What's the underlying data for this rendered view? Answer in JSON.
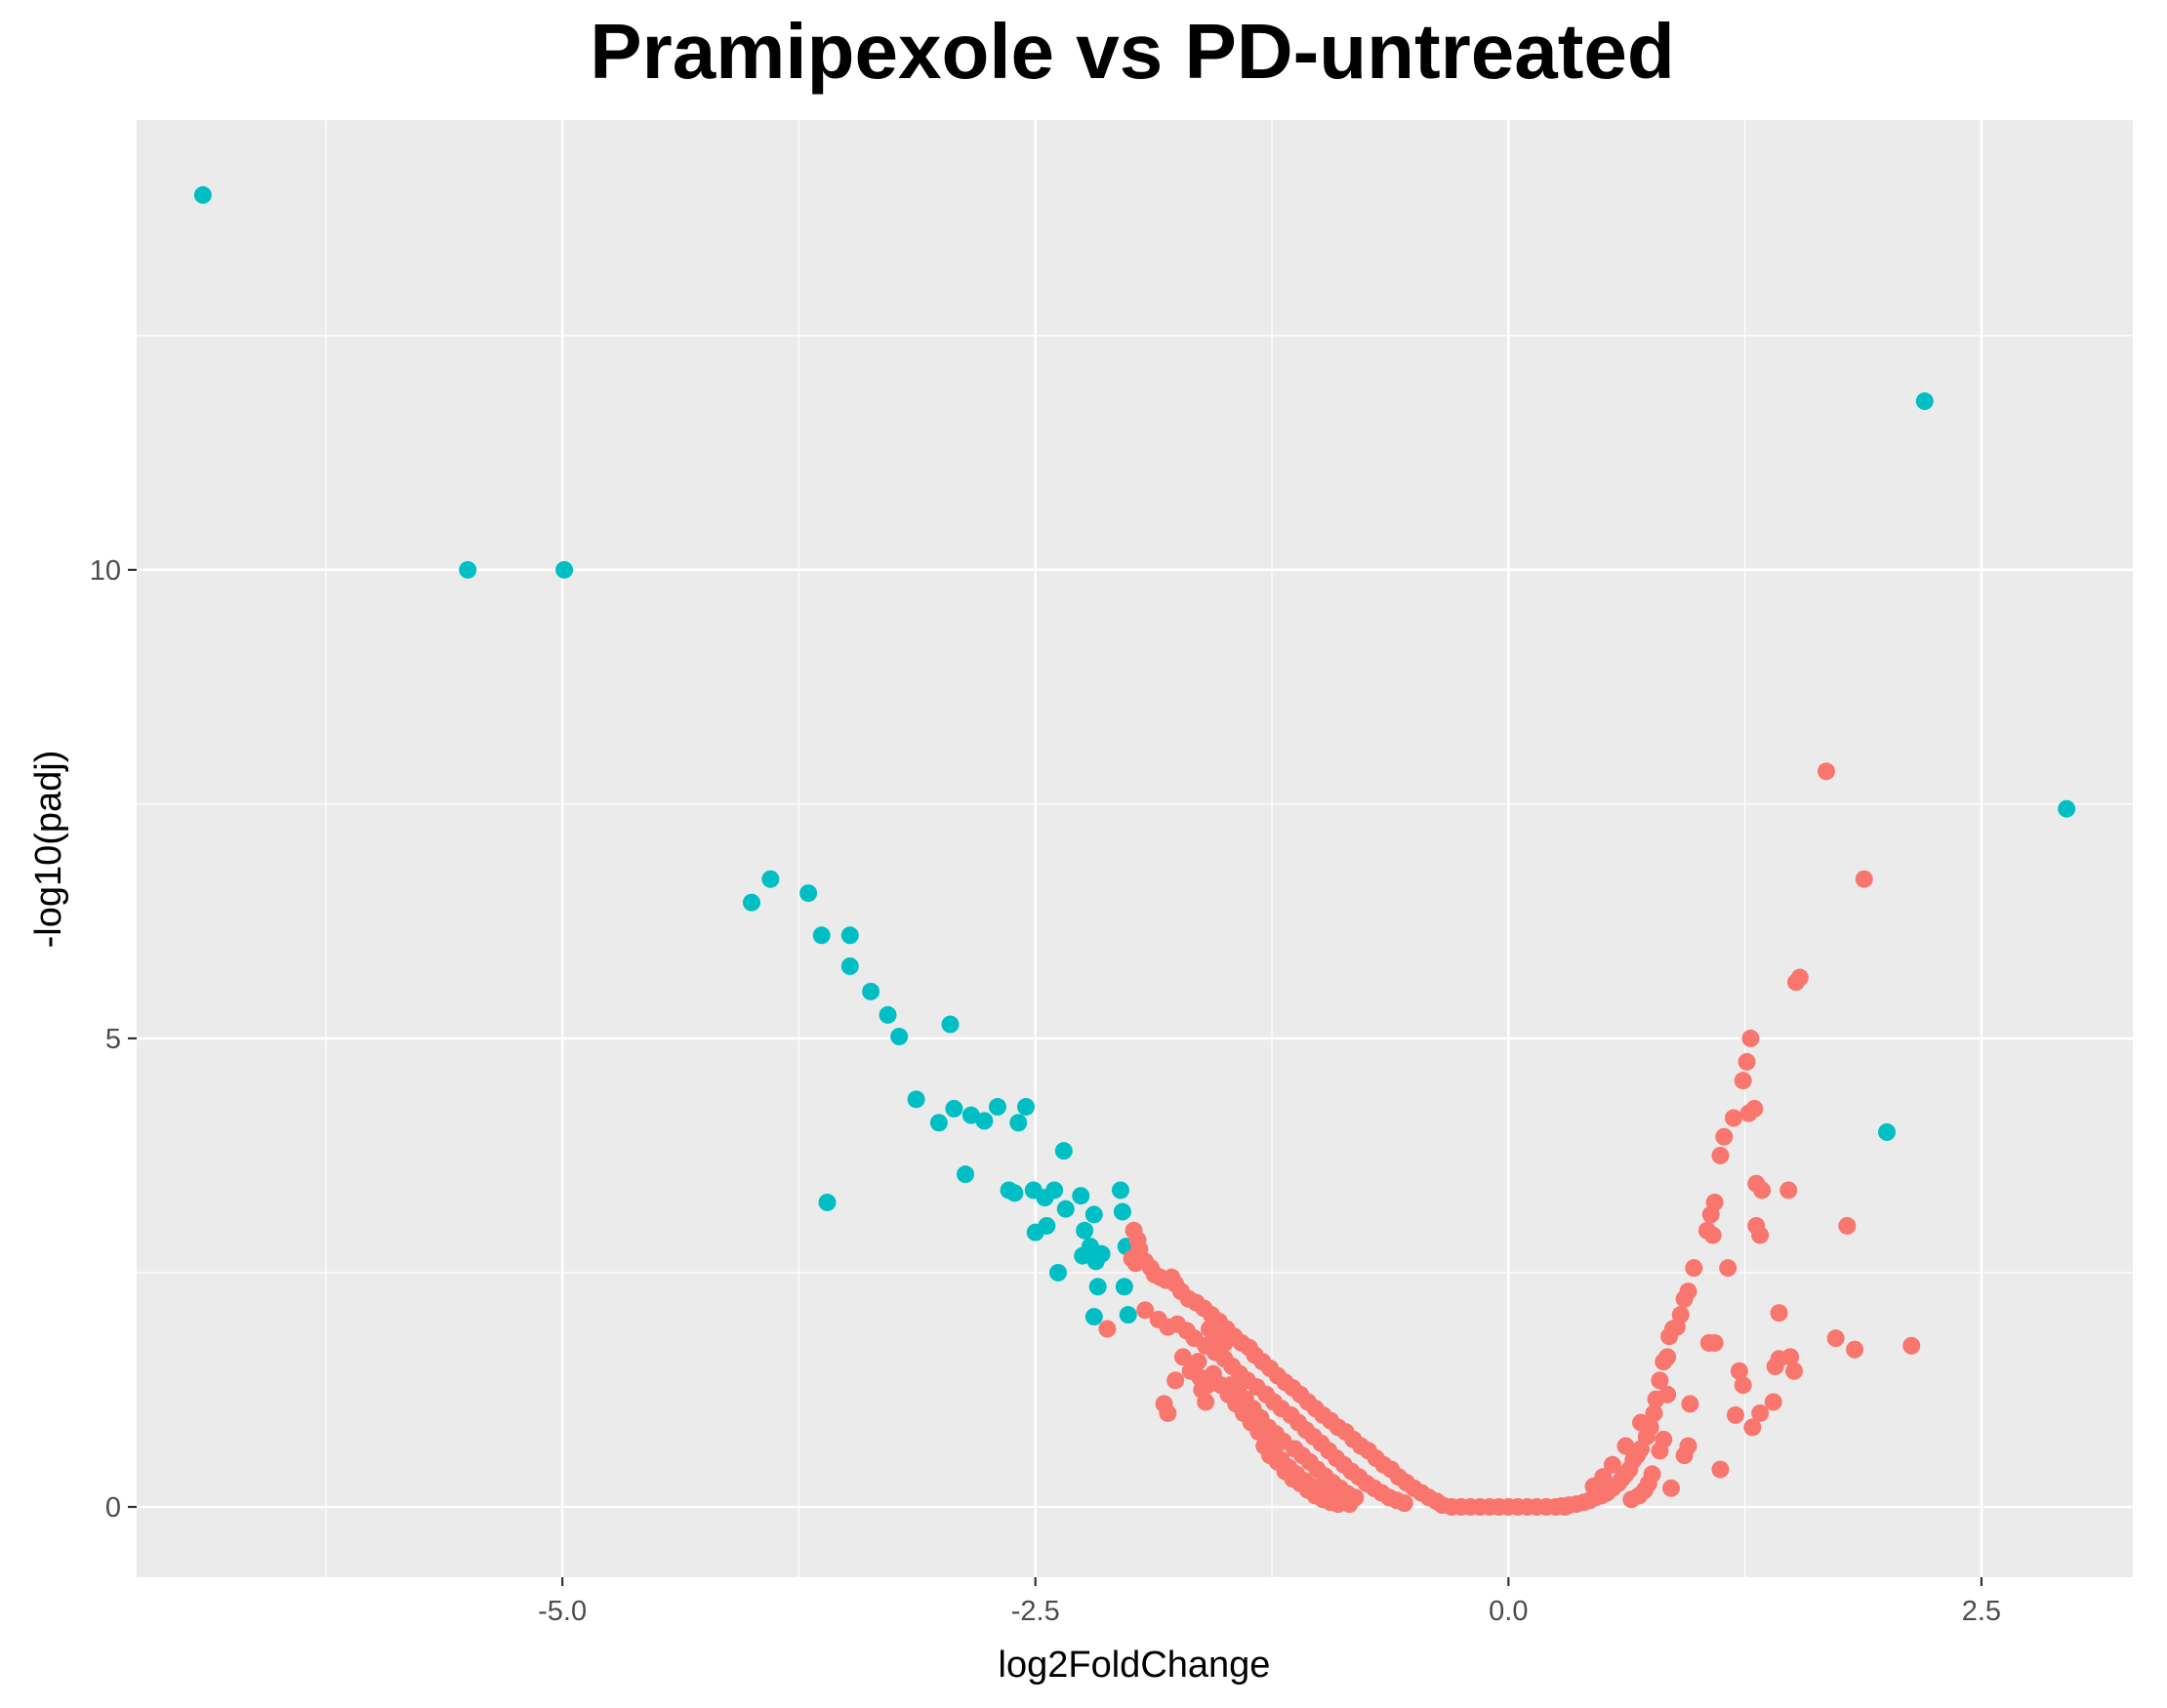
{
  "chart_data": {
    "type": "scatter",
    "title": "Pramipexole vs PD-untreated",
    "xlabel": "log2FoldChange",
    "ylabel": "-log10(padj)",
    "xlim": [
      -7.25,
      3.3
    ],
    "ylim": [
      -0.75,
      14.8
    ],
    "x_ticks": [
      -5.0,
      -2.5,
      0.0,
      2.5
    ],
    "x_tick_labels": [
      "-5.0",
      "-2.5",
      "0.0",
      "2.5"
    ],
    "y_ticks": [
      0,
      5,
      10
    ],
    "y_tick_labels": [
      "0",
      "5",
      "10"
    ],
    "grid": true,
    "legend": "none",
    "colors": {
      "panel_background": "#ebebeb",
      "grid": "#ffffff",
      "significant": "#00bfc4",
      "not_significant": "#f8766d"
    },
    "series": [
      {
        "color": "#00bfc4",
        "points": [
          [
            -6.9,
            14.0
          ],
          [
            -5.5,
            10.0
          ],
          [
            -4.99,
            10.0
          ],
          [
            2.2,
            11.8
          ],
          [
            2.95,
            7.45
          ],
          [
            2.0,
            4.0
          ],
          [
            -4.0,
            6.45
          ],
          [
            -3.9,
            6.7
          ],
          [
            -3.7,
            6.55
          ],
          [
            -3.63,
            6.1
          ],
          [
            -3.48,
            6.1
          ],
          [
            -3.48,
            5.77
          ],
          [
            -3.37,
            5.5
          ],
          [
            -3.28,
            5.25
          ],
          [
            -3.22,
            5.02
          ],
          [
            -3.13,
            4.35
          ],
          [
            -3.01,
            4.1
          ],
          [
            -2.95,
            5.15
          ],
          [
            -2.93,
            4.25
          ],
          [
            -2.87,
            3.55
          ],
          [
            -2.84,
            4.18
          ],
          [
            -2.77,
            4.12
          ],
          [
            -2.7,
            4.27
          ],
          [
            -2.64,
            3.38
          ],
          [
            -2.61,
            3.35
          ],
          [
            -2.59,
            4.1
          ],
          [
            -2.55,
            4.27
          ],
          [
            -2.51,
            3.38
          ],
          [
            -2.5,
            2.93
          ],
          [
            -2.45,
            3.3
          ],
          [
            -2.44,
            3.0
          ],
          [
            -2.4,
            3.38
          ],
          [
            -2.38,
            2.5
          ],
          [
            -2.35,
            3.8
          ],
          [
            -2.34,
            3.18
          ],
          [
            -2.26,
            3.32
          ],
          [
            -2.25,
            2.68
          ],
          [
            -2.24,
            2.95
          ],
          [
            -2.21,
            2.78
          ],
          [
            -2.19,
            3.12
          ],
          [
            -2.18,
            2.62
          ],
          [
            -2.17,
            2.7
          ],
          [
            -2.17,
            2.35
          ],
          [
            -2.15,
            2.7
          ],
          [
            -2.19,
            2.03
          ],
          [
            -2.05,
            3.38
          ],
          [
            -2.04,
            3.15
          ],
          [
            -2.03,
            2.35
          ],
          [
            -2.02,
            2.78
          ],
          [
            -2.01,
            2.05
          ],
          [
            -3.6,
            3.25
          ]
        ]
      },
      {
        "color": "#f8766d",
        "points": [
          [
            1.68,
            7.85
          ],
          [
            1.88,
            6.7
          ],
          [
            1.52,
            5.6
          ],
          [
            1.54,
            5.65
          ],
          [
            1.28,
            5.0
          ],
          [
            1.26,
            4.75
          ],
          [
            1.24,
            4.55
          ],
          [
            1.3,
            4.25
          ],
          [
            1.27,
            4.2
          ],
          [
            1.19,
            4.15
          ],
          [
            1.14,
            3.95
          ],
          [
            1.12,
            3.75
          ],
          [
            1.31,
            3.45
          ],
          [
            1.34,
            3.38
          ],
          [
            1.48,
            3.38
          ],
          [
            1.09,
            3.25
          ],
          [
            1.07,
            3.12
          ],
          [
            1.05,
            2.95
          ],
          [
            1.08,
            2.9
          ],
          [
            1.31,
            3.0
          ],
          [
            1.33,
            2.9
          ],
          [
            1.79,
            3.0
          ],
          [
            0.98,
            2.55
          ],
          [
            1.16,
            2.55
          ],
          [
            0.95,
            2.3
          ],
          [
            0.93,
            2.22
          ],
          [
            0.91,
            2.05
          ],
          [
            0.89,
            1.92
          ],
          [
            0.87,
            1.9
          ],
          [
            0.85,
            1.82
          ],
          [
            1.43,
            2.07
          ],
          [
            1.06,
            1.75
          ],
          [
            1.09,
            1.75
          ],
          [
            0.84,
            1.6
          ],
          [
            0.82,
            1.55
          ],
          [
            1.73,
            1.8
          ],
          [
            1.83,
            1.68
          ],
          [
            2.13,
            1.72
          ],
          [
            1.43,
            1.58
          ],
          [
            1.49,
            1.6
          ],
          [
            1.51,
            1.45
          ],
          [
            1.41,
            1.5
          ],
          [
            1.22,
            1.45
          ],
          [
            1.24,
            1.3
          ],
          [
            1.33,
            1.0
          ],
          [
            1.4,
            1.12
          ],
          [
            1.29,
            0.85
          ],
          [
            1.2,
            0.98
          ],
          [
            1.12,
            0.4
          ],
          [
            0.8,
            1.35
          ],
          [
            0.78,
            1.15
          ],
          [
            0.77,
            1.0
          ],
          [
            0.75,
            0.85
          ],
          [
            0.73,
            0.75
          ],
          [
            0.7,
            0.62
          ],
          [
            0.68,
            0.55
          ],
          [
            0.66,
            0.5
          ],
          [
            0.64,
            0.4
          ],
          [
            0.62,
            0.35
          ],
          [
            0.6,
            0.3
          ],
          [
            0.58,
            0.25
          ],
          [
            0.55,
            0.2
          ],
          [
            0.52,
            0.15
          ],
          [
            0.49,
            0.12
          ],
          [
            0.46,
            0.1
          ],
          [
            0.43,
            0.07
          ],
          [
            0.4,
            0.05
          ],
          [
            0.36,
            0.03
          ],
          [
            0.32,
            0.02
          ],
          [
            0.28,
            0.01
          ],
          [
            0.95,
            0.65
          ],
          [
            0.93,
            0.55
          ],
          [
            0.82,
            0.72
          ],
          [
            0.8,
            0.6
          ],
          [
            0.86,
            0.2
          ],
          [
            0.76,
            0.35
          ],
          [
            0.74,
            0.25
          ],
          [
            0.72,
            0.18
          ],
          [
            0.69,
            0.12
          ],
          [
            0.65,
            0.08
          ],
          [
            0.96,
            1.1
          ],
          [
            0.84,
            1.2
          ],
          [
            0.7,
            0.9
          ],
          [
            0.62,
            0.65
          ],
          [
            0.55,
            0.45
          ],
          [
            0.5,
            0.32
          ],
          [
            0.45,
            0.22
          ],
          [
            0.3,
            0.0
          ],
          [
            0.2,
            0.0
          ],
          [
            0.1,
            0.0
          ],
          [
            0.0,
            0.0
          ],
          [
            -0.1,
            0.0
          ],
          [
            -0.2,
            0.0
          ],
          [
            -0.3,
            0.0
          ],
          [
            0.25,
            0.0
          ],
          [
            0.15,
            0.0
          ],
          [
            0.05,
            0.0
          ],
          [
            -0.05,
            0.0
          ],
          [
            -0.15,
            0.0
          ],
          [
            -0.25,
            0.0
          ],
          [
            -0.35,
            0.02
          ],
          [
            -1.98,
            2.95
          ],
          [
            -1.96,
            2.85
          ],
          [
            -1.99,
            2.65
          ],
          [
            -1.97,
            2.6
          ],
          [
            -1.95,
            2.75
          ],
          [
            -1.92,
            2.62
          ],
          [
            -1.89,
            2.55
          ],
          [
            -1.87,
            2.48
          ],
          [
            -1.84,
            2.45
          ],
          [
            -1.81,
            2.42
          ],
          [
            -1.78,
            2.45
          ],
          [
            -1.76,
            2.38
          ],
          [
            -1.73,
            2.3
          ],
          [
            -1.69,
            2.22
          ],
          [
            -1.65,
            2.18
          ],
          [
            -1.61,
            2.12
          ],
          [
            -1.57,
            2.05
          ],
          [
            -1.53,
            1.98
          ],
          [
            -1.49,
            1.9
          ],
          [
            -1.45,
            1.82
          ],
          [
            -1.41,
            1.75
          ],
          [
            -1.37,
            1.7
          ],
          [
            -1.34,
            1.62
          ],
          [
            -1.3,
            1.55
          ],
          [
            -1.26,
            1.48
          ],
          [
            -1.22,
            1.4
          ],
          [
            -1.18,
            1.33
          ],
          [
            -1.14,
            1.27
          ],
          [
            -1.1,
            1.2
          ],
          [
            -1.06,
            1.12
          ],
          [
            -1.02,
            1.05
          ],
          [
            -0.98,
            0.98
          ],
          [
            -0.94,
            0.92
          ],
          [
            -0.9,
            0.85
          ],
          [
            -0.86,
            0.8
          ],
          [
            -0.82,
            0.72
          ],
          [
            -0.78,
            0.65
          ],
          [
            -0.74,
            0.6
          ],
          [
            -0.7,
            0.52
          ],
          [
            -0.66,
            0.45
          ],
          [
            -0.62,
            0.4
          ],
          [
            -0.58,
            0.32
          ],
          [
            -0.54,
            0.26
          ],
          [
            -0.5,
            0.2
          ],
          [
            -0.46,
            0.15
          ],
          [
            -0.42,
            0.1
          ],
          [
            -0.38,
            0.06
          ],
          [
            -1.92,
            2.1
          ],
          [
            -1.85,
            2.0
          ],
          [
            -1.8,
            1.92
          ],
          [
            -1.75,
            1.95
          ],
          [
            -1.7,
            1.88
          ],
          [
            -1.66,
            1.8
          ],
          [
            -1.6,
            1.72
          ],
          [
            -1.55,
            1.65
          ],
          [
            -1.5,
            1.58
          ],
          [
            -1.46,
            1.5
          ],
          [
            -1.42,
            1.42
          ],
          [
            -1.38,
            1.35
          ],
          [
            -1.33,
            1.28
          ],
          [
            -1.28,
            1.2
          ],
          [
            -1.24,
            1.12
          ],
          [
            -1.2,
            1.05
          ],
          [
            -1.15,
            0.98
          ],
          [
            -1.11,
            0.9
          ],
          [
            -1.07,
            0.82
          ],
          [
            -1.03,
            0.75
          ],
          [
            -0.99,
            0.68
          ],
          [
            -0.95,
            0.6
          ],
          [
            -0.91,
            0.52
          ],
          [
            -0.87,
            0.45
          ],
          [
            -0.83,
            0.38
          ],
          [
            -0.79,
            0.32
          ],
          [
            -0.75,
            0.25
          ],
          [
            -0.71,
            0.2
          ],
          [
            -0.67,
            0.15
          ],
          [
            -0.63,
            0.1
          ],
          [
            -0.59,
            0.07
          ],
          [
            -0.55,
            0.04
          ],
          [
            -2.12,
            1.9
          ],
          [
            -1.82,
            1.1
          ],
          [
            -1.8,
            1.0
          ],
          [
            -1.76,
            1.35
          ],
          [
            -1.64,
            1.55
          ],
          [
            -1.62,
            1.25
          ],
          [
            -1.6,
            1.12
          ],
          [
            -1.56,
            1.42
          ],
          [
            -1.52,
            1.3
          ],
          [
            -1.48,
            1.2
          ],
          [
            -1.44,
            1.1
          ],
          [
            -1.4,
            1.0
          ],
          [
            -1.36,
            0.9
          ],
          [
            -1.32,
            0.8
          ],
          [
            -1.28,
            0.7
          ],
          [
            -1.24,
            0.6
          ],
          [
            -1.2,
            0.5
          ],
          [
            -1.16,
            0.42
          ],
          [
            -1.12,
            0.35
          ],
          [
            -1.08,
            0.28
          ],
          [
            -1.04,
            0.22
          ],
          [
            -1.0,
            0.16
          ],
          [
            -0.96,
            0.12
          ],
          [
            -0.92,
            0.08
          ],
          [
            -0.88,
            0.05
          ],
          [
            -0.84,
            0.03
          ],
          [
            -1.58,
            1.9
          ],
          [
            -1.54,
            1.8
          ],
          [
            -1.5,
            1.75
          ],
          [
            -1.47,
            1.3
          ],
          [
            -1.43,
            1.25
          ],
          [
            -1.39,
            1.15
          ],
          [
            -1.35,
            1.05
          ],
          [
            -1.31,
            0.95
          ],
          [
            -1.27,
            0.85
          ],
          [
            -1.23,
            0.78
          ],
          [
            -1.19,
            0.7
          ],
          [
            -1.13,
            0.62
          ],
          [
            -1.09,
            0.55
          ],
          [
            -1.05,
            0.48
          ],
          [
            -1.01,
            0.4
          ],
          [
            -0.97,
            0.33
          ],
          [
            -0.93,
            0.26
          ],
          [
            -0.89,
            0.2
          ],
          [
            -0.85,
            0.14
          ],
          [
            -0.81,
            0.1
          ],
          [
            -1.72,
            1.6
          ],
          [
            -1.68,
            1.45
          ],
          [
            -1.63,
            1.38
          ],
          [
            -1.59,
            1.3
          ],
          [
            -1.29,
            0.65
          ],
          [
            -1.26,
            0.55
          ],
          [
            -1.22,
            0.48
          ],
          [
            -1.18,
            0.38
          ],
          [
            -1.14,
            0.3
          ],
          [
            -1.1,
            0.25
          ],
          [
            -1.06,
            0.18
          ],
          [
            -1.02,
            0.12
          ],
          [
            -0.98,
            0.08
          ],
          [
            -0.94,
            0.05
          ],
          [
            -0.9,
            0.03
          ]
        ]
      }
    ]
  }
}
